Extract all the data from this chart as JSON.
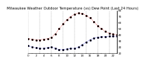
{
  "title": "Milwaukee Weather Outdoor Temperature (vs) Dew Point (Last 24 Hours)",
  "temp_x": [
    0,
    1,
    2,
    3,
    4,
    5,
    6,
    7,
    8,
    9,
    10,
    11,
    12,
    13,
    14,
    15,
    16,
    17,
    18,
    19,
    20,
    21,
    22,
    23
  ],
  "temp_y": [
    34,
    33,
    32,
    32,
    33,
    34,
    36,
    42,
    50,
    58,
    65,
    70,
    74,
    76,
    75,
    72,
    68,
    62,
    55,
    50,
    46,
    43,
    41,
    40
  ],
  "dew_x": [
    0,
    1,
    2,
    3,
    4,
    5,
    6,
    7,
    8,
    9,
    10,
    11,
    12,
    13,
    14,
    15,
    16,
    17,
    18,
    19,
    20,
    21,
    22,
    23
  ],
  "dew_y": [
    22,
    20,
    19,
    18,
    18,
    19,
    20,
    18,
    16,
    16,
    17,
    18,
    18,
    20,
    24,
    28,
    32,
    35,
    36,
    37,
    37,
    38,
    38,
    38
  ],
  "temp_color": "#cc0000",
  "dew_color": "#0000cc",
  "black_color": "#000000",
  "bg_color": "#ffffff",
  "ylim": [
    10,
    80
  ],
  "xlim": [
    0,
    23
  ],
  "yticks": [
    10,
    20,
    30,
    40,
    50,
    60,
    70,
    80
  ],
  "grid_color": "#999999",
  "title_fontsize": 3.8,
  "tick_fontsize": 3.0,
  "marker_every": 1
}
